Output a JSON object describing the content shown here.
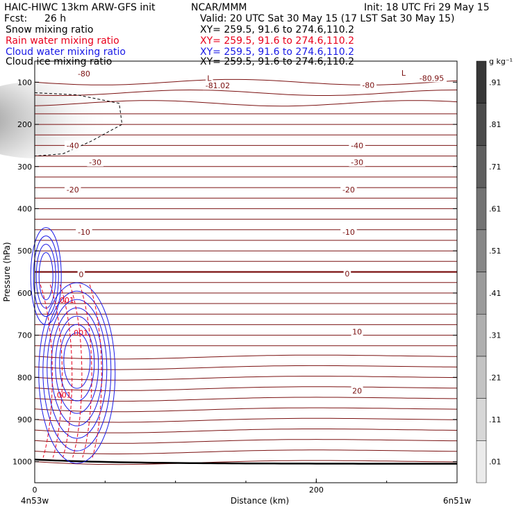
{
  "header": {
    "model": "HAIC-HIWC 13km ARW-GFS init",
    "org": "NCAR/MMM",
    "init": "Init: 18 UTC Fri 29 May 15",
    "fcst_label": "Fcst:",
    "fcst_value": "26 h",
    "valid": "Valid: 20 UTC Sat 30 May 15 (17 LST Sat 30 May 15)"
  },
  "fields": [
    {
      "name": "Snow mixing ratio",
      "xy": "XY= 259.5, 91.6 to 274.6,110.2",
      "color": "#000000"
    },
    {
      "name": "Rain water mixing ratio",
      "xy": "XY= 259.5, 91.6 to 274.6,110.2",
      "color": "#e8001c"
    },
    {
      "name": "Cloud water mixing ratio",
      "xy": "XY= 259.5, 91.6 to 274.6,110.2",
      "color": "#1a1ae6"
    },
    {
      "name": "Cloud ice mixing ratio",
      "xy": "XY= 259.5, 91.6 to 274.6,110.2",
      "color": "#000000"
    }
  ],
  "chart_data": {
    "type": "contour",
    "xlabel": "Distance (km)",
    "ylabel": "Pressure (hPa)",
    "xlim": [
      0,
      300
    ],
    "ylim": [
      1050,
      50
    ],
    "x_ticks": [
      0,
      200
    ],
    "y_ticks": [
      100,
      200,
      300,
      400,
      500,
      600,
      700,
      800,
      900,
      1000
    ],
    "x_end_labels": {
      "left": "4n53w",
      "right": "6n51w"
    },
    "temperature_contours": {
      "color": "#7a1010",
      "labels": [
        {
          "text": "-80",
          "x": 35,
          "p": 80
        },
        {
          "text": "-80",
          "x": 237,
          "p": 107
        },
        {
          "text": "-81.02",
          "x": 130,
          "p": 108
        },
        {
          "text": "-80.95",
          "x": 282,
          "p": 90
        },
        {
          "text": "L",
          "x": 124,
          "p": 90
        },
        {
          "text": "L",
          "x": 262,
          "p": 78
        },
        {
          "text": "-40",
          "x": 27,
          "p": 250
        },
        {
          "text": "-40",
          "x": 229,
          "p": 250
        },
        {
          "text": "-30",
          "x": 43,
          "p": 290
        },
        {
          "text": "-30",
          "x": 229,
          "p": 290
        },
        {
          "text": "-20",
          "x": 27,
          "p": 355
        },
        {
          "text": "-20",
          "x": 223,
          "p": 355
        },
        {
          "text": "-10",
          "x": 35,
          "p": 455
        },
        {
          "text": "-10",
          "x": 223,
          "p": 455
        },
        {
          "text": "0",
          "x": 33,
          "p": 556
        },
        {
          "text": "0",
          "x": 222,
          "p": 554
        },
        {
          "text": "10",
          "x": 229,
          "p": 692
        },
        {
          "text": "20",
          "x": 229,
          "p": 832
        }
      ]
    },
    "mixing_ratio_labels": [
      {
        "text": ".001",
        "x": 22,
        "p": 617
      },
      {
        "text": ".001",
        "x": 32,
        "p": 694
      },
      {
        "text": ".001",
        "x": 20,
        "p": 842
      }
    ],
    "colorbar": {
      "unit": "g kg⁻¹",
      "levels": [
        ".01",
        ".11",
        ".21",
        ".31",
        ".41",
        ".51",
        ".61",
        ".71",
        ".81",
        ".91"
      ]
    }
  }
}
